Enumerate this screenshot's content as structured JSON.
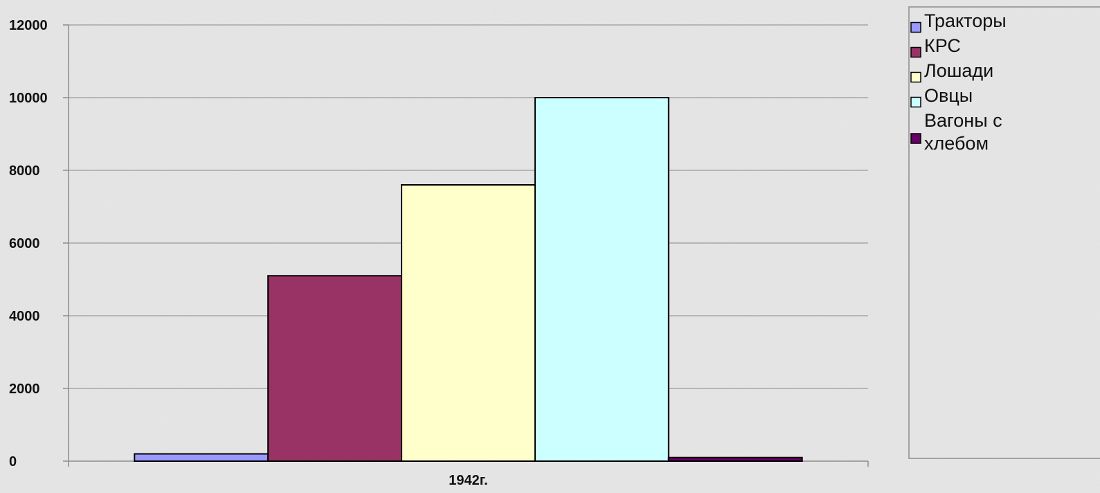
{
  "chart_data": {
    "type": "bar",
    "categories": [
      "1942г."
    ],
    "series": [
      {
        "name": "Тракторы",
        "values": [
          200
        ],
        "color": "#9999ff"
      },
      {
        "name": "КРС",
        "values": [
          5100
        ],
        "color": "#993366"
      },
      {
        "name": "Лошади",
        "values": [
          7600
        ],
        "color": "#ffffcc"
      },
      {
        "name": "Овцы",
        "values": [
          10000
        ],
        "color": "#ccffff"
      },
      {
        "name": "Вагоны с хлебом",
        "values": [
          100
        ],
        "color": "#660066"
      }
    ],
    "ylim": [
      0,
      12000
    ],
    "yticks": [
      "0",
      "2000",
      "4000",
      "6000",
      "8000",
      "10000",
      "12000"
    ],
    "grid": true,
    "legend_position": "right"
  }
}
